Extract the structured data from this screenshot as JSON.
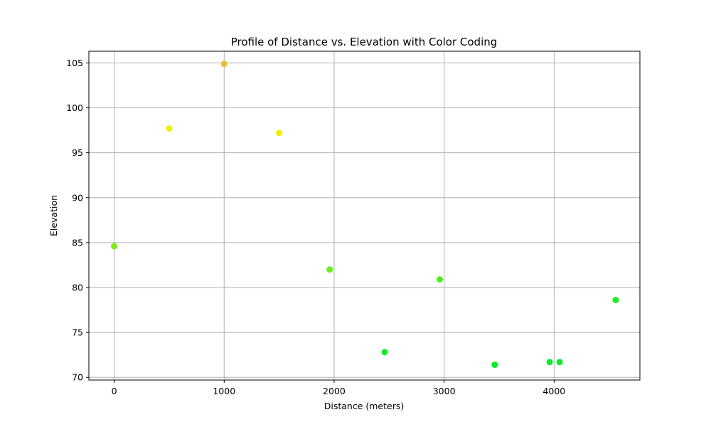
{
  "chart_data": {
    "type": "scatter",
    "title": "Profile of Distance vs. Elevation with Color Coding",
    "xlabel": "Distance (meters)",
    "ylabel": "Elevation",
    "xlim": [
      -230,
      4780
    ],
    "ylim": [
      69.7,
      106.3
    ],
    "xticks": [
      0,
      1000,
      2000,
      3000,
      4000
    ],
    "yticks": [
      70,
      75,
      80,
      85,
      90,
      95,
      100,
      105
    ],
    "grid": true,
    "points": [
      {
        "x": 0,
        "y": 84.6,
        "color": "#7fe81a"
      },
      {
        "x": 500,
        "y": 97.7,
        "color": "#f2ee00"
      },
      {
        "x": 1000,
        "y": 104.9,
        "color": "#e8c02e"
      },
      {
        "x": 1500,
        "y": 97.2,
        "color": "#f2ee00"
      },
      {
        "x": 1960,
        "y": 82.0,
        "color": "#66f01a"
      },
      {
        "x": 2460,
        "y": 72.8,
        "color": "#12ea2a"
      },
      {
        "x": 2960,
        "y": 80.9,
        "color": "#4cf01a"
      },
      {
        "x": 3460,
        "y": 71.4,
        "color": "#0cea2a"
      },
      {
        "x": 3960,
        "y": 71.7,
        "color": "#0cea2a"
      },
      {
        "x": 4050,
        "y": 71.7,
        "color": "#0cea2a"
      },
      {
        "x": 4560,
        "y": 78.6,
        "color": "#1eee1e"
      }
    ]
  }
}
